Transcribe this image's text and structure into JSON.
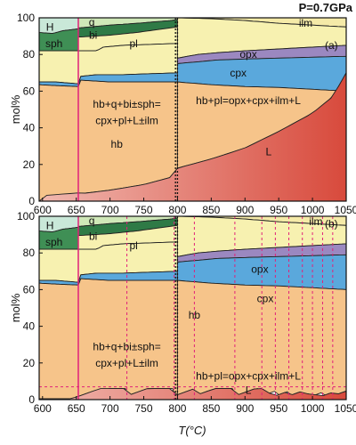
{
  "pressure_label": "P=0.7GPa",
  "chart_data": [
    {
      "type": "area",
      "panel_label": "(a)",
      "xlabel": "T(°C)",
      "ylabel": "mol%",
      "xlim": [
        595,
        1050
      ],
      "ylim": [
        0,
        100
      ],
      "xticks": [
        600,
        650,
        700,
        750,
        800,
        850,
        900,
        950,
        1000,
        1050
      ],
      "yticks": [
        0,
        20,
        40,
        60,
        80,
        100
      ],
      "grid": false,
      "boundaries": {
        "H_top": [
          [
            595,
            100
          ],
          [
            615,
            100
          ],
          [
            655,
            99.5
          ],
          [
            700,
            99
          ],
          [
            720,
            98.5
          ],
          [
            760,
            98.5
          ],
          [
            790,
            99.5
          ],
          [
            800,
            100
          ]
        ],
        "H_sph": [
          [
            595,
            92
          ],
          [
            615,
            91.5
          ],
          [
            630,
            93
          ],
          [
            653,
            94
          ]
        ],
        "q_bi": [
          [
            655,
            94.5
          ],
          [
            700,
            96
          ],
          [
            740,
            97
          ],
          [
            790,
            98.5
          ],
          [
            800,
            99
          ]
        ],
        "bi_pl": [
          [
            655,
            89.5
          ],
          [
            700,
            90.5
          ],
          [
            740,
            92
          ],
          [
            780,
            94
          ],
          [
            800,
            95
          ]
        ],
        "sph_hb": [
          [
            595,
            82
          ],
          [
            653,
            82
          ],
          [
            655,
            82
          ],
          [
            680,
            82
          ],
          [
            690,
            84
          ],
          [
            720,
            85
          ],
          [
            760,
            85.5
          ],
          [
            800,
            86
          ]
        ],
        "pl_upper_hi": [
          [
            800,
            100
          ],
          [
            850,
            99.5
          ],
          [
            900,
            98.5
          ],
          [
            950,
            97
          ],
          [
            1000,
            96
          ],
          [
            1050,
            95
          ]
        ],
        "opx_top": [
          [
            800,
            78
          ],
          [
            830,
            80
          ],
          [
            860,
            81
          ],
          [
            900,
            82
          ],
          [
            950,
            83
          ],
          [
            1000,
            84
          ],
          [
            1050,
            85
          ]
        ],
        "opx_bottom": [
          [
            800,
            75
          ],
          [
            830,
            76
          ],
          [
            860,
            77
          ],
          [
            900,
            77.5
          ],
          [
            950,
            78
          ],
          [
            1000,
            78.5
          ],
          [
            1050,
            79
          ]
        ],
        "cpx_top_lo": [
          [
            595,
            65
          ],
          [
            620,
            65
          ],
          [
            653,
            64
          ],
          [
            655,
            68
          ],
          [
            680,
            69
          ],
          [
            720,
            69
          ],
          [
            760,
            69.5
          ],
          [
            800,
            70
          ]
        ],
        "cpx_bottom": [
          [
            595,
            63.5
          ],
          [
            620,
            63
          ],
          [
            653,
            62.5
          ],
          [
            655,
            66
          ],
          [
            700,
            65
          ],
          [
            750,
            65
          ],
          [
            800,
            65
          ],
          [
            850,
            63.5
          ],
          [
            900,
            62.5
          ],
          [
            950,
            62
          ],
          [
            1000,
            61
          ],
          [
            1050,
            60
          ]
        ],
        "melt_top": [
          [
            595,
            0
          ],
          [
            600,
            3
          ],
          [
            653,
            4.5
          ],
          [
            655,
            4
          ],
          [
            700,
            6
          ],
          [
            750,
            9
          ],
          [
            790,
            13
          ],
          [
            800,
            18
          ],
          [
            850,
            23
          ],
          [
            900,
            29
          ],
          [
            950,
            38
          ],
          [
            1000,
            48
          ],
          [
            1030,
            57
          ],
          [
            1050,
            70
          ]
        ]
      },
      "vertical_lines": [
        {
          "x": 653,
          "style": "solid",
          "color": "#e0207a"
        },
        {
          "x": 797,
          "style": "dotted",
          "color": "#111111"
        },
        {
          "x": 800,
          "style": "dotted",
          "color": "#111111"
        }
      ],
      "phase_labels": [
        "H",
        "q",
        "sph",
        "bi",
        "pl",
        "ilm",
        "opx",
        "cpx",
        "hb",
        "L"
      ],
      "reaction_labels": [
        "hb+q+bi±sph=",
        "cpx+pl+L±ilm",
        "hb+pl=opx+cpx+ilm+L"
      ]
    },
    {
      "type": "area",
      "panel_label": "(b)",
      "xlabel": "T(°C)",
      "ylabel": "mol%",
      "xlim": [
        595,
        1050
      ],
      "ylim": [
        0,
        100
      ],
      "xticks": [
        600,
        650,
        700,
        750,
        800,
        850,
        900,
        950,
        1000,
        1050
      ],
      "yticks": [
        0,
        20,
        40,
        60,
        80,
        100
      ],
      "grid": false,
      "melt_extraction_threshold": 7,
      "extraction_temperatures": [
        725,
        795,
        825,
        885,
        925,
        945,
        965,
        985,
        1000,
        1015,
        1030
      ],
      "phase_labels": [
        "H",
        "q",
        "sph",
        "bi",
        "pl",
        "ilm",
        "opx",
        "cpx",
        "hb",
        "L"
      ],
      "reaction_labels": [
        "hb+q+bi±sph=",
        "cpx+pl+L±ilm",
        "hb+pl=opx+cpx+ilm+L"
      ]
    }
  ]
}
